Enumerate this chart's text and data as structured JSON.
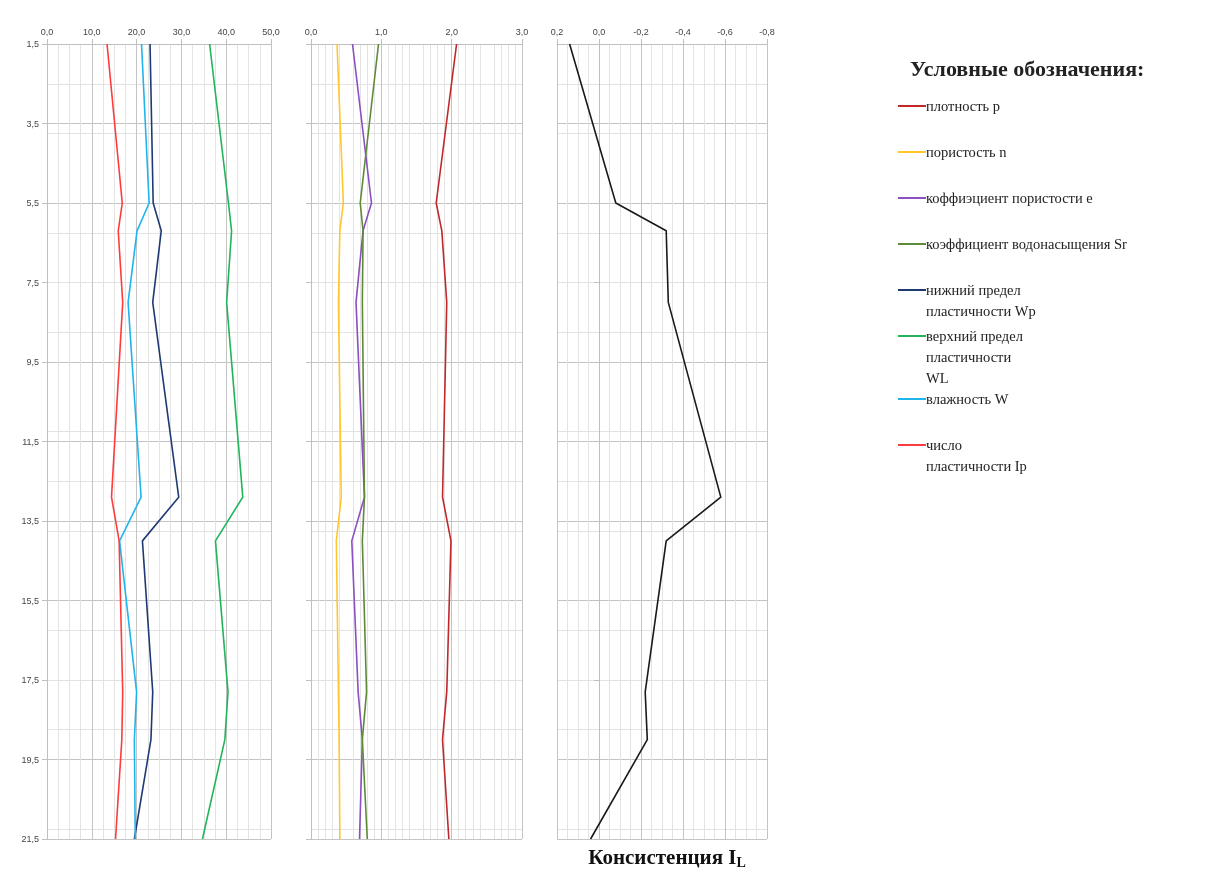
{
  "chart_data": [
    {
      "type": "line",
      "orientation": "horizontal",
      "marker": "none",
      "grid": true,
      "legend": "right",
      "x": [
        1.5,
        5.5,
        6.2,
        8.0,
        12.9,
        14.0,
        17.8,
        19.0,
        21.5
      ],
      "xlim": [
        0,
        50
      ],
      "xticks": [
        {
          "value": 0,
          "label": "0,0"
        },
        {
          "value": 10,
          "label": "10,0"
        },
        {
          "value": 20,
          "label": "20,0"
        },
        {
          "value": 30,
          "label": "30,0"
        },
        {
          "value": 40,
          "label": "40,0"
        },
        {
          "value": 50,
          "label": "50,0"
        }
      ],
      "ylim": [
        21.5,
        1.5
      ],
      "yticks": [
        {
          "value": 1.5,
          "label": "1,5"
        },
        {
          "value": 3.5,
          "label": "3,5"
        },
        {
          "value": 5.5,
          "label": "5,5"
        },
        {
          "value": 7.5,
          "label": "7,5"
        },
        {
          "value": 9.5,
          "label": "9,5"
        },
        {
          "value": 11.5,
          "label": "11,5"
        },
        {
          "value": 13.5,
          "label": "13,5"
        },
        {
          "value": 15.5,
          "label": "15,5"
        },
        {
          "value": 17.5,
          "label": "17,5"
        },
        {
          "value": 19.5,
          "label": "19,5"
        },
        {
          "value": 21.5,
          "label": "21,5"
        }
      ],
      "series": [
        {
          "name": "нижний предел\nпластичности Wp",
          "color": "#1f3a73",
          "values": [
            23.0,
            23.7,
            25.5,
            23.6,
            29.4,
            21.3,
            23.6,
            23.2,
            19.5
          ]
        },
        {
          "name": "верхний предел\nпластичности\nWL",
          "color": "#22b45a",
          "values": [
            36.3,
            40.5,
            41.2,
            40.1,
            43.7,
            37.6,
            40.4,
            39.7,
            34.7
          ]
        },
        {
          "name": "влажность W",
          "color": "#1fb5ec",
          "values": [
            21.1,
            22.8,
            20.1,
            18.1,
            21.0,
            16.2,
            20.0,
            19.5,
            19.7
          ]
        },
        {
          "name": "число\nпластичности Ip",
          "color": "#ff3b3b",
          "values": [
            13.4,
            16.8,
            15.9,
            16.9,
            14.4,
            16.1,
            16.9,
            16.7,
            15.3
          ]
        }
      ]
    },
    {
      "type": "line",
      "orientation": "horizontal",
      "marker": "none",
      "grid": true,
      "legend": "right",
      "tick_labels": "x",
      "legend_title": "Условные обозначения:",
      "x": [
        1.5,
        5.5,
        6.2,
        8.0,
        12.9,
        14.0,
        17.8,
        19.0,
        21.5
      ],
      "xlim": [
        0,
        3
      ],
      "xticks": [
        {
          "value": 0,
          "label": "0,0"
        },
        {
          "value": 1,
          "label": "1,0"
        },
        {
          "value": 2,
          "label": "2,0"
        },
        {
          "value": 3,
          "label": "3,0"
        }
      ],
      "ylim": [
        21.5,
        1.5
      ],
      "yticks": [
        {
          "value": 1.5,
          "label": null
        },
        {
          "value": 3.5,
          "label": null
        },
        {
          "value": 5.5,
          "label": null
        },
        {
          "value": 7.5,
          "label": null
        },
        {
          "value": 9.5,
          "label": null
        },
        {
          "value": 11.5,
          "label": null
        },
        {
          "value": 13.5,
          "label": null
        },
        {
          "value": 15.5,
          "label": null
        },
        {
          "value": 17.5,
          "label": null
        },
        {
          "value": 19.5,
          "label": null
        },
        {
          "value": 21.5,
          "label": null
        }
      ],
      "series": [
        {
          "name": "плотность p",
          "color": "#c0282a",
          "values": [
            2.07,
            1.78,
            1.86,
            1.93,
            1.87,
            1.99,
            1.93,
            1.87,
            1.96
          ]
        },
        {
          "name": "пористость n",
          "color": "#ffc62e",
          "values": [
            0.37,
            0.46,
            0.41,
            0.39,
            0.43,
            0.36,
            0.39,
            0.4,
            0.41
          ]
        },
        {
          "name": "коффиэциент пористости е",
          "color": "#8a4fc0",
          "values": [
            0.59,
            0.86,
            0.74,
            0.64,
            0.76,
            0.58,
            0.67,
            0.73,
            0.69
          ]
        },
        {
          "name": "коэффициент водонасыщения Sr",
          "color": "#5e8a38",
          "values": [
            0.96,
            0.7,
            0.74,
            0.73,
            0.76,
            0.73,
            0.79,
            0.73,
            0.8
          ]
        }
      ]
    },
    {
      "type": "line",
      "orientation": "horizontal",
      "marker": "none",
      "grid": true,
      "tick_labels": "x",
      "xlabel": "Консистенция I$_{L}$",
      "x": [
        1.5,
        5.5,
        6.2,
        8.0,
        12.9,
        14.0,
        17.8,
        19.0,
        21.5
      ],
      "xlim": [
        0.2,
        -0.8
      ],
      "xticks": [
        {
          "value": 0.2,
          "label": "0,2"
        },
        {
          "value": 0,
          "label": "0,0"
        },
        {
          "value": -0.2,
          "label": "-0,2"
        },
        {
          "value": -0.4,
          "label": "-0,4"
        },
        {
          "value": -0.6,
          "label": "-0,6"
        },
        {
          "value": -0.8,
          "label": "-0,8"
        }
      ],
      "ylim": [
        21.5,
        1.5
      ],
      "yticks": [
        {
          "value": 1.5,
          "label": null
        },
        {
          "value": 3.5,
          "label": null
        },
        {
          "value": 5.5,
          "label": null
        },
        {
          "value": 7.5,
          "label": null
        },
        {
          "value": 9.5,
          "label": null
        },
        {
          "value": 11.5,
          "label": null
        },
        {
          "value": 13.5,
          "label": null
        },
        {
          "value": 15.5,
          "label": null
        },
        {
          "value": 17.5,
          "label": null
        },
        {
          "value": 19.5,
          "label": null
        },
        {
          "value": 21.5,
          "label": null
        }
      ],
      "series": [
        {
          "color": "#1a1a1a",
          "values": [
            0.14,
            -0.08,
            -0.32,
            -0.33,
            -0.58,
            -0.32,
            -0.22,
            -0.23,
            0.04
          ]
        }
      ]
    }
  ]
}
